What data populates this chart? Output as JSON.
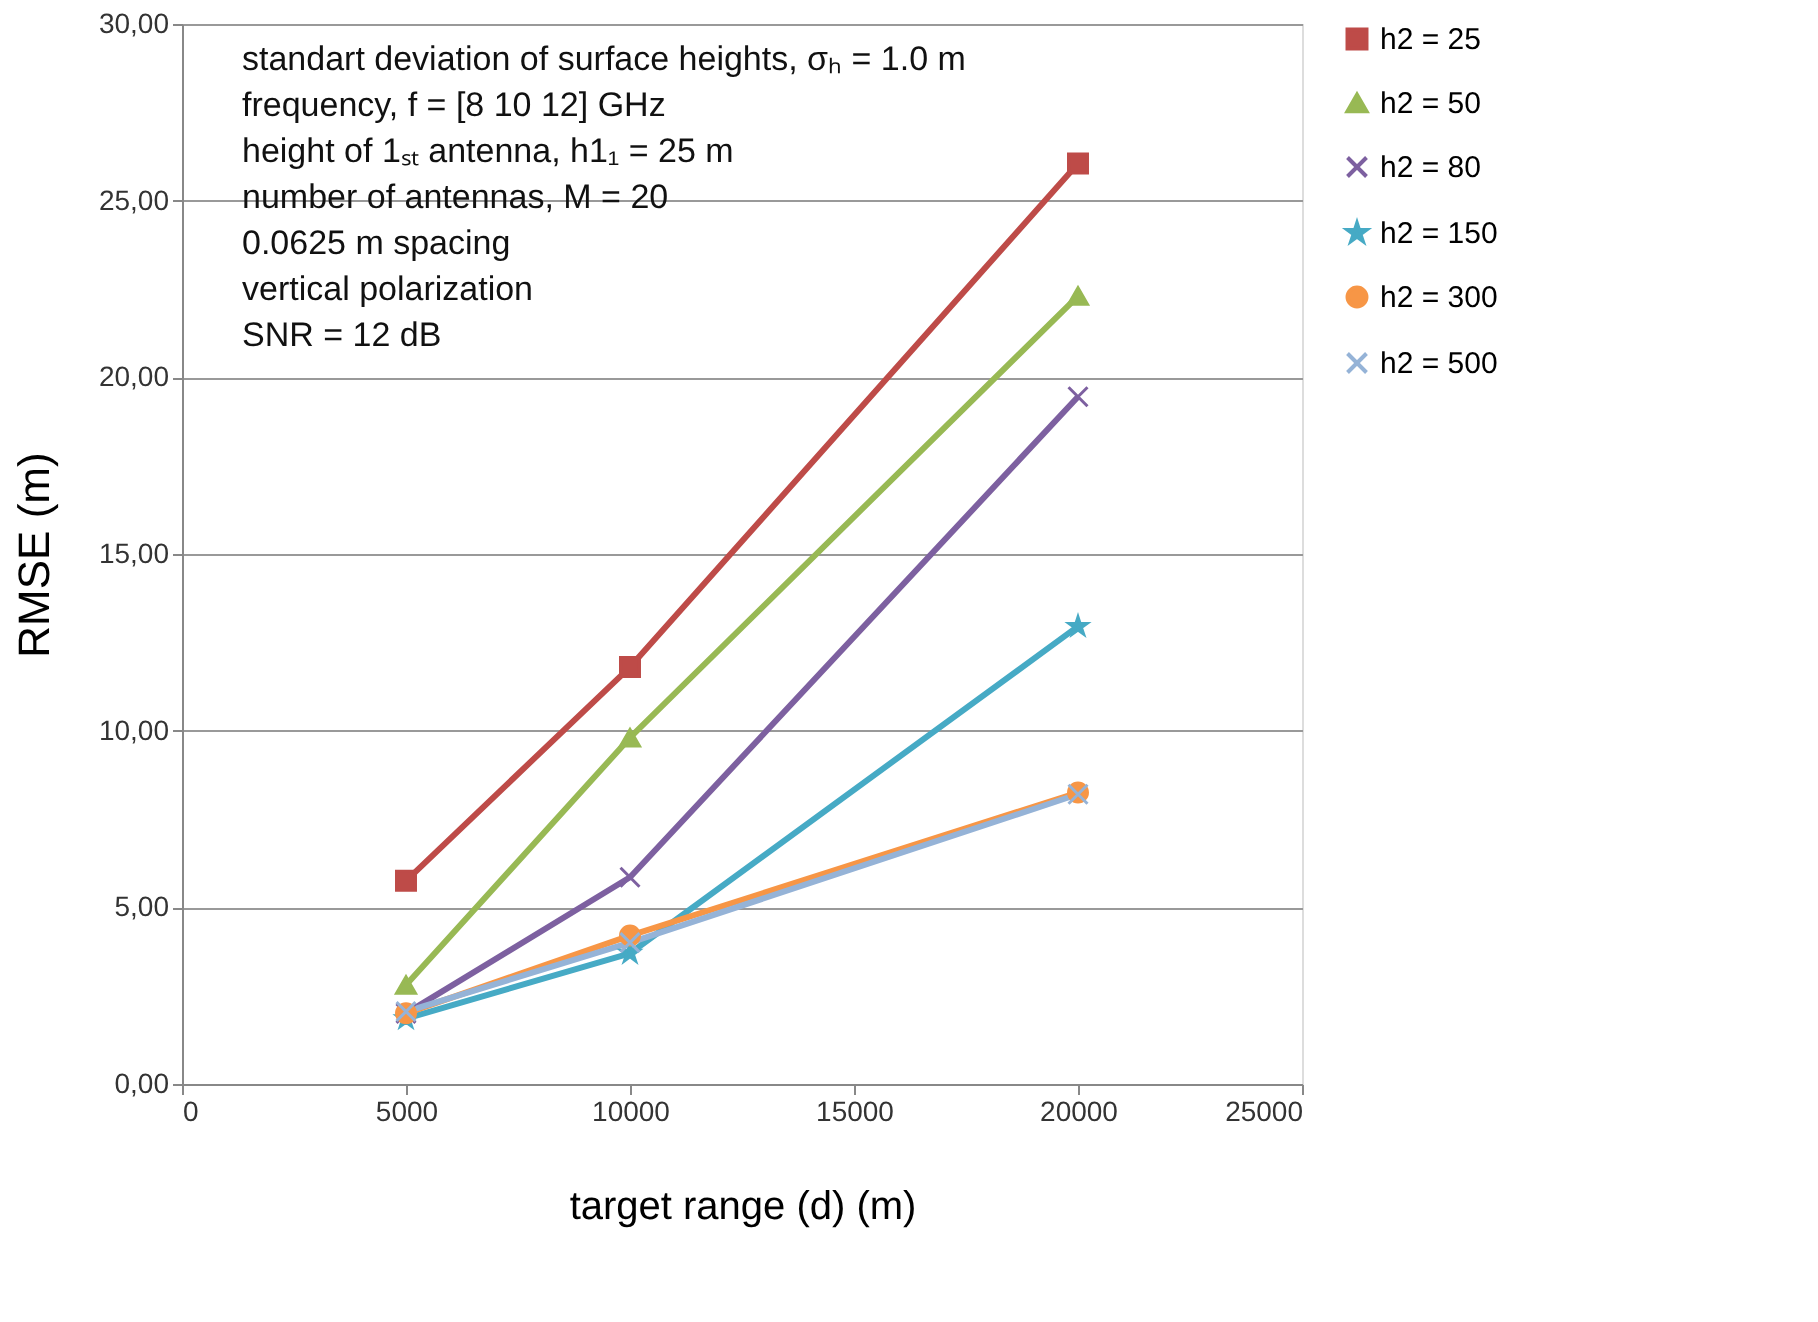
{
  "chart_data": {
    "type": "line",
    "xlabel": "target range (d) (m)",
    "ylabel": "RMSE (m)",
    "x": [
      5000,
      10000,
      20000
    ],
    "series": [
      {
        "name": "h2 = 25",
        "color": "#be4b48",
        "marker": "square",
        "values": [
          5.75,
          11.8,
          26.05
        ]
      },
      {
        "name": "h2 = 50",
        "color": "#98b954",
        "marker": "triangle",
        "values": [
          2.8,
          9.8,
          22.3
        ]
      },
      {
        "name": "h2 = 80",
        "color": "#7d60a0",
        "marker": "cross",
        "values": [
          2.0,
          5.85,
          19.45
        ]
      },
      {
        "name": "h2 = 150",
        "color": "#46aac5",
        "marker": "star",
        "values": [
          1.85,
          3.7,
          12.95
        ]
      },
      {
        "name": "h2 = 300",
        "color": "#f79646",
        "marker": "circle",
        "values": [
          2.0,
          4.2,
          8.25
        ]
      },
      {
        "name": "h2 = 500",
        "color": "#95b3d7",
        "marker": "cross",
        "values": [
          2.05,
          4.0,
          8.2
        ]
      }
    ],
    "xlim": [
      0,
      25000
    ],
    "xticks": [
      0,
      5000,
      10000,
      15000,
      20000,
      25000
    ],
    "ylim": [
      0,
      30
    ],
    "yticks": [
      {
        "value": 0,
        "label": "0,00"
      },
      {
        "value": 5,
        "label": "5,00"
      },
      {
        "value": 10,
        "label": "10,00"
      },
      {
        "value": 15,
        "label": "15,00"
      },
      {
        "value": 20,
        "label": "20,00"
      },
      {
        "value": 25,
        "label": "25,00"
      },
      {
        "value": 30,
        "label": "30,00"
      }
    ],
    "grid": "y",
    "legend": "right",
    "line_style": "solid",
    "annotations": [
      "standart deviation of surface heights, σₕ = 1.0 m",
      "frequency, f = [8 10 12] GHz",
      "height of 1ₛₜ antenna, h1₁ = 25 m",
      "number of antennas, M = 20",
      "0.0625 m spacing",
      "vertical polarization",
      "SNR = 12 dB"
    ]
  }
}
